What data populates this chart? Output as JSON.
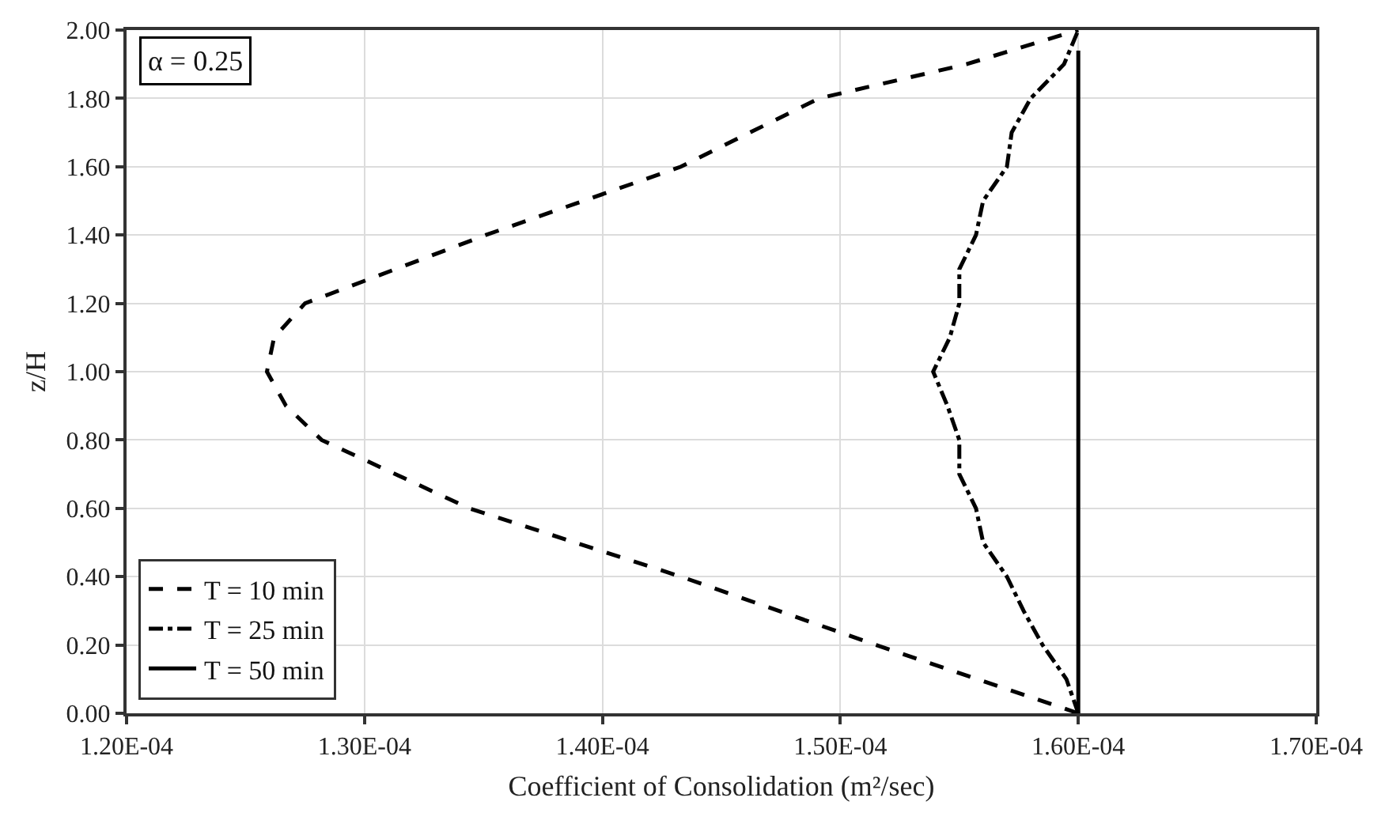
{
  "chart_data": {
    "type": "line",
    "xlabel": "Coefficient of Consolidation (m²/sec)",
    "ylabel": "z/H",
    "annotations": [
      "α = 0.25"
    ],
    "xlim": [
      0.00012,
      0.00017
    ],
    "xticks": [
      {
        "value": 0.00012,
        "label": "1.20E-04"
      },
      {
        "value": 0.00013,
        "label": "1.30E-04"
      },
      {
        "value": 0.00014,
        "label": "1.40E-04"
      },
      {
        "value": 0.00015,
        "label": "1.50E-04"
      },
      {
        "value": 0.00016,
        "label": "1.60E-04"
      },
      {
        "value": 0.00017,
        "label": "1.70E-04"
      }
    ],
    "ylim": [
      0,
      2
    ],
    "yticks": [
      {
        "value": 0,
        "label": "0.00"
      },
      {
        "value": 0.2,
        "label": "0.20"
      },
      {
        "value": 0.4,
        "label": "0.40"
      },
      {
        "value": 0.6,
        "label": "0.60"
      },
      {
        "value": 0.8,
        "label": "0.80"
      },
      {
        "value": 1,
        "label": "1.00"
      },
      {
        "value": 1.2,
        "label": "1.20"
      },
      {
        "value": 1.4,
        "label": "1.40"
      },
      {
        "value": 1.6,
        "label": "1.60"
      },
      {
        "value": 1.8,
        "label": "1.80"
      },
      {
        "value": 2,
        "label": "2.00"
      }
    ],
    "grid": true,
    "legend": "bottom left",
    "marker": "none",
    "series": [
      {
        "name": "T = 10 min",
        "color": "#000000",
        "line_style": "dashed",
        "x": [
          0.00016,
          0.0001515,
          0.0001433,
          0.0001344,
          0.0001282,
          0.0001267,
          0.0001259,
          0.0001262,
          0.0001275,
          0.0001351,
          0.0001433,
          0.0001491,
          0.0001553,
          0.00016
        ],
        "values": [
          0,
          0.2,
          0.4,
          0.6,
          0.8,
          0.9,
          1.0,
          1.1,
          1.2,
          1.4,
          1.6,
          1.8,
          1.9,
          2.0
        ]
      },
      {
        "name": "T = 25 min",
        "color": "#000000",
        "line_style": "dashdot",
        "x": [
          0.00016,
          0.0001595,
          0.0001585,
          0.0001577,
          0.000157,
          0.000156,
          0.0001557,
          0.000155,
          0.000155,
          0.0001545,
          0.0001539,
          0.0001546,
          0.000155,
          0.000155,
          0.0001557,
          0.000156,
          0.000157,
          0.0001572,
          0.000158,
          0.0001594,
          0.00016
        ],
        "values": [
          0,
          0.1,
          0.2,
          0.3,
          0.4,
          0.5,
          0.6,
          0.7,
          0.8,
          0.9,
          1.0,
          1.1,
          1.2,
          1.3,
          1.4,
          1.5,
          1.6,
          1.7,
          1.8,
          1.9,
          2.0
        ]
      },
      {
        "name": "T = 50 min",
        "color": "#000000",
        "line_style": "solid",
        "x": [
          0.00016,
          0.00016
        ],
        "values": [
          0,
          1.94
        ]
      }
    ]
  }
}
